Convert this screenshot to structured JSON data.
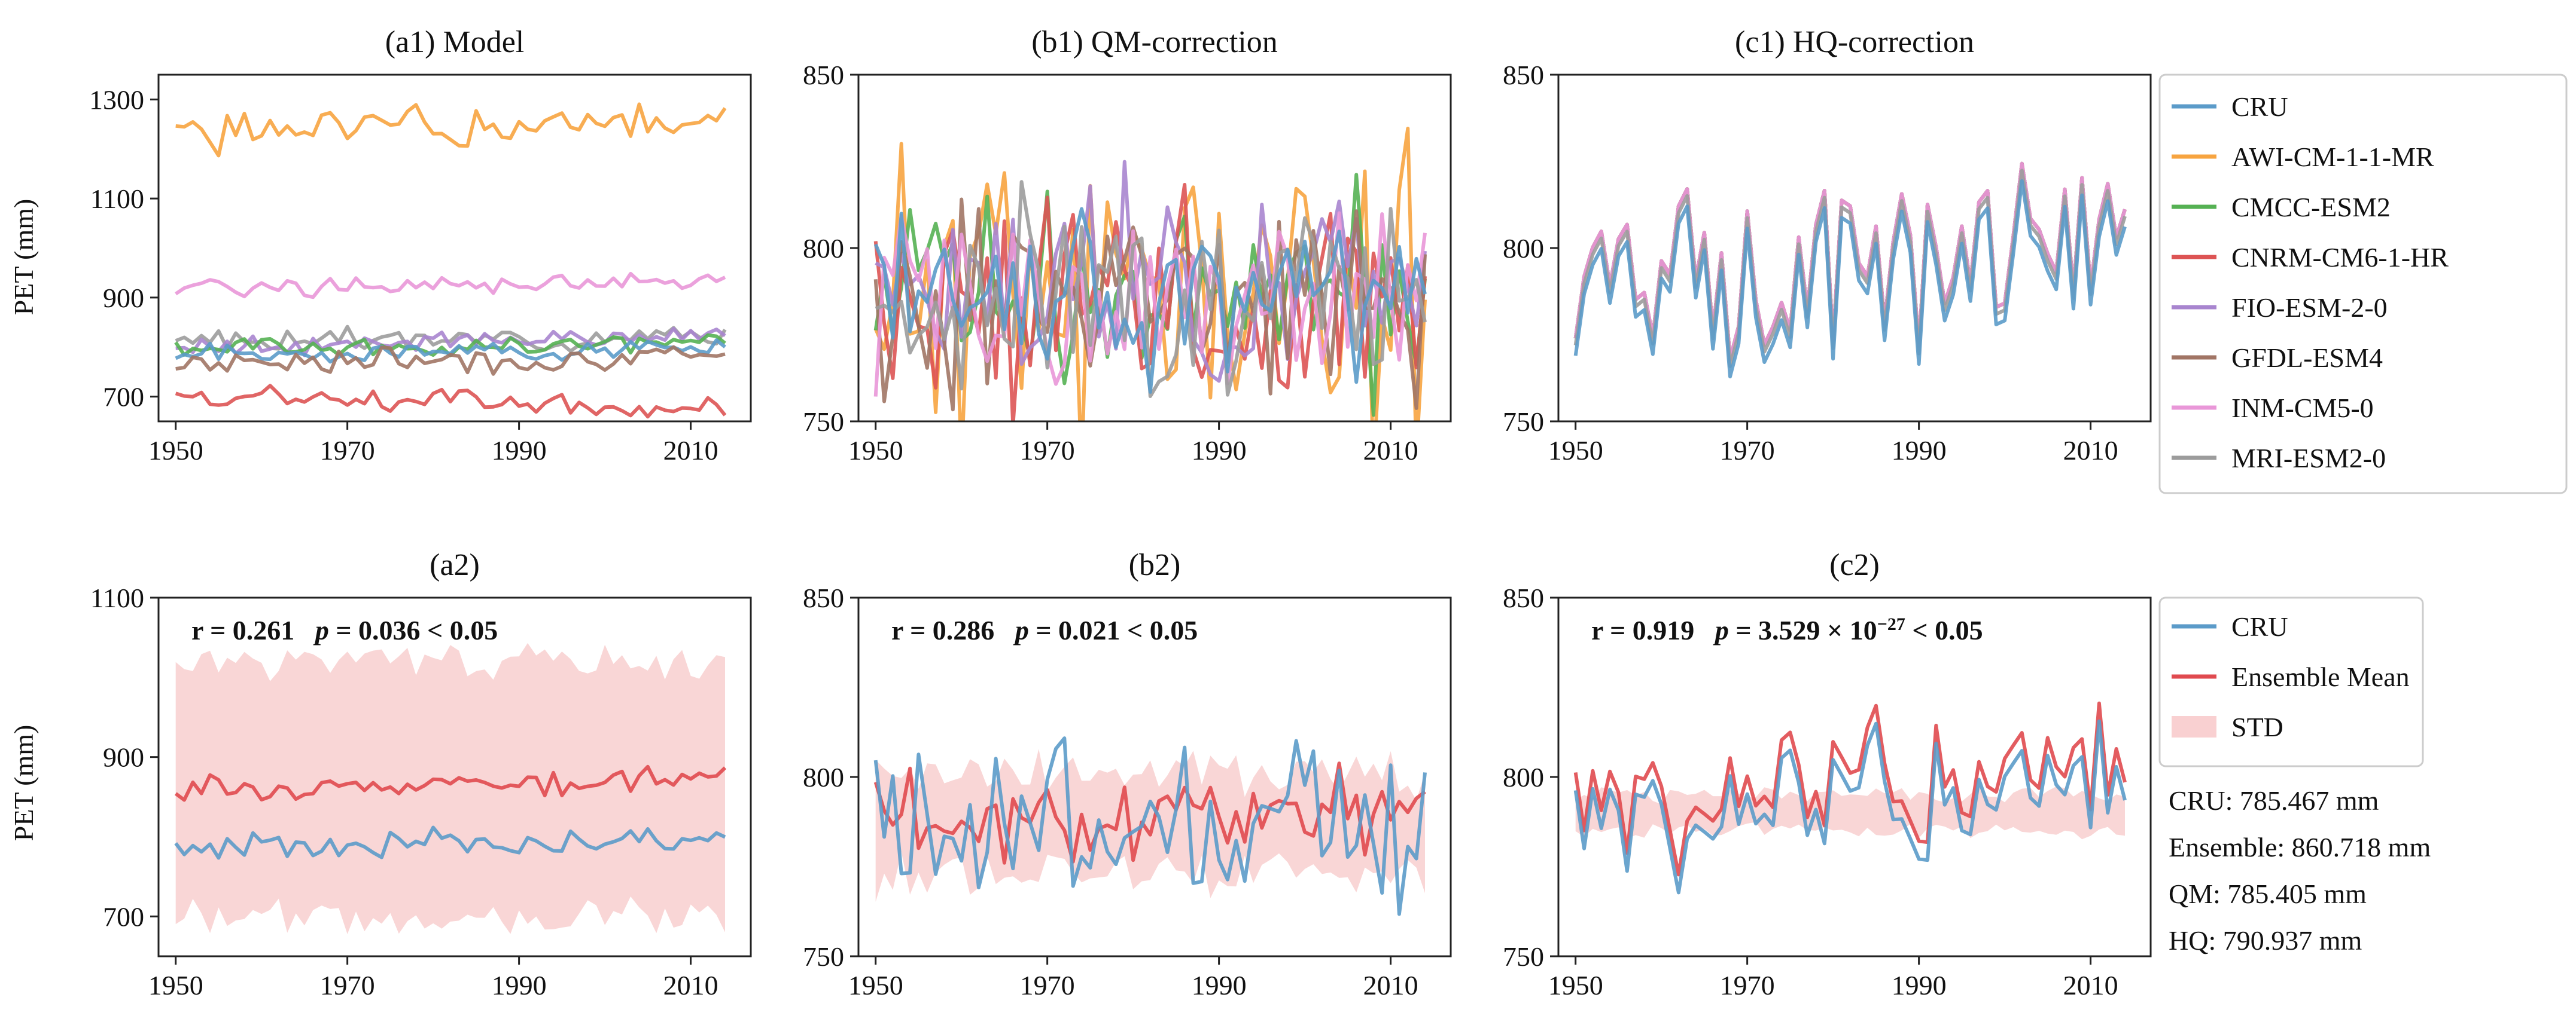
{
  "figure": {
    "ylabel": "PET (mm)",
    "xticks": [
      1950,
      1970,
      1990,
      2010
    ],
    "xlim": [
      1948,
      2017
    ]
  },
  "series_colors": {
    "CRU": "#5b9bc9",
    "AWI-CM-1-1-MR": "#f7a440",
    "CMCC-ESM2": "#55b153",
    "CNRM-CM6-1-HR": "#dd5454",
    "FIO-ESM-2-0": "#a885cf",
    "GFDL-ESM4": "#a17565",
    "INM-CM5-0": "#e997d8",
    "MRI-ESM2-0": "#9c9c9c",
    "Ensemble Mean": "#e04a4f",
    "STD": "#f7c4c5"
  },
  "legend_top": [
    "CRU",
    "AWI-CM-1-1-MR",
    "CMCC-ESM2",
    "CNRM-CM6-1-HR",
    "FIO-ESM-2-0",
    "GFDL-ESM4",
    "INM-CM5-0",
    "MRI-ESM2-0"
  ],
  "legend_bottom": [
    "CRU",
    "Ensemble Mean",
    "STD"
  ],
  "summary": [
    "CRU: 785.467 mm",
    "Ensemble: 860.718 mm",
    "QM: 785.405 mm",
    "HQ: 790.937 mm"
  ],
  "chart_data": [
    {
      "id": "a1",
      "type": "line",
      "title": "(a1) Model",
      "xlabel": "",
      "ylabel": "PET (mm)",
      "ylim": [
        650,
        1350
      ],
      "yticks": [
        700,
        900,
        1100,
        1300
      ],
      "series": [
        {
          "name": "AWI-CM-1-1-MR",
          "base": 1230,
          "amp": 24,
          "trend": 30,
          "seed": 1
        },
        {
          "name": "INM-CM5-0",
          "base": 922,
          "amp": 9,
          "trend": 8,
          "seed": 2
        },
        {
          "name": "MRI-ESM2-0",
          "base": 812,
          "amp": 10,
          "trend": 8,
          "seed": 3
        },
        {
          "name": "FIO-ESM-2-0",
          "base": 800,
          "amp": 10,
          "trend": 25,
          "seed": 4
        },
        {
          "name": "CMCC-ESM2",
          "base": 795,
          "amp": 10,
          "trend": 12,
          "seed": 5
        },
        {
          "name": "CRU",
          "base": 785,
          "amp": 9,
          "trend": 12,
          "seed": 6
        },
        {
          "name": "GFDL-ESM4",
          "base": 770,
          "amp": 12,
          "trend": 8,
          "seed": 7
        },
        {
          "name": "CNRM-CM6-1-HR",
          "base": 700,
          "amp": 12,
          "trend": -25,
          "seed": 8
        }
      ]
    },
    {
      "id": "b1",
      "type": "line",
      "title": "(b1) QM-correction",
      "xlabel": "",
      "ylabel": "",
      "ylim": [
        750,
        850
      ],
      "yticks": [
        750,
        800,
        850
      ],
      "series": [
        {
          "name": "AWI-CM-1-1-MR",
          "base": 786,
          "amp": 24,
          "trend": 4,
          "seed": 11
        },
        {
          "name": "CMCC-ESM2",
          "base": 786,
          "amp": 14,
          "trend": 4,
          "seed": 12
        },
        {
          "name": "CNRM-CM6-1-HR",
          "base": 786,
          "amp": 16,
          "trend": 0,
          "seed": 13
        },
        {
          "name": "FIO-ESM-2-0",
          "base": 786,
          "amp": 14,
          "trend": 4,
          "seed": 14
        },
        {
          "name": "GFDL-ESM4",
          "base": 786,
          "amp": 13,
          "trend": 0,
          "seed": 15
        },
        {
          "name": "INM-CM5-0",
          "base": 786,
          "amp": 15,
          "trend": 0,
          "seed": 16
        },
        {
          "name": "MRI-ESM2-0",
          "base": 786,
          "amp": 15,
          "trend": 0,
          "seed": 17
        },
        {
          "name": "CRU",
          "base": 785,
          "amp": 11,
          "trend": 4,
          "seed": 18
        }
      ]
    },
    {
      "id": "c1",
      "type": "line",
      "title": "(c1) HQ-correction",
      "xlabel": "",
      "ylabel": "",
      "ylim": [
        750,
        850
      ],
      "yticks": [
        750,
        800,
        850
      ],
      "series": [
        {
          "name": "AWI-CM-1-1-MR",
          "base": 790,
          "amp": 11,
          "trend": 14,
          "seed": 21
        },
        {
          "name": "CMCC-ESM2",
          "base": 790,
          "amp": 11,
          "trend": 14,
          "seed": 21
        },
        {
          "name": "CNRM-CM6-1-HR",
          "base": 790,
          "amp": 11,
          "trend": 14,
          "seed": 21
        },
        {
          "name": "FIO-ESM-2-0",
          "base": 790,
          "amp": 11,
          "trend": 14,
          "seed": 21
        },
        {
          "name": "GFDL-ESM4",
          "base": 790,
          "amp": 11,
          "trend": 14,
          "seed": 21
        },
        {
          "name": "INM-CM5-0",
          "base": 790,
          "amp": 11,
          "trend": 14,
          "seed": 21
        },
        {
          "name": "MRI-ESM2-0",
          "base": 788,
          "amp": 11,
          "trend": 14,
          "seed": 21
        },
        {
          "name": "CRU",
          "base": 785,
          "amp": 11,
          "trend": 14,
          "seed": 21
        }
      ]
    },
    {
      "id": "a2",
      "type": "line",
      "title": "(a2)",
      "xlabel": "",
      "ylabel": "PET (mm)",
      "ylim": [
        650,
        1100
      ],
      "yticks": [
        700,
        900,
        1100
      ],
      "annotation": {
        "r": "r = 0.261",
        "p": "p",
        "p_rest": " = 0.036 < 0.05"
      },
      "band": {
        "name": "STD",
        "center": 860,
        "half_width": 160,
        "amp": 18,
        "seed": 31
      },
      "series": [
        {
          "name": "Ensemble Mean",
          "base": 860,
          "amp": 7,
          "trend": 14,
          "seed": 32
        },
        {
          "name": "CRU",
          "base": 785,
          "amp": 8,
          "trend": 14,
          "seed": 33
        }
      ]
    },
    {
      "id": "b2",
      "type": "line",
      "title": "(b2)",
      "xlabel": "",
      "ylabel": "",
      "ylim": [
        750,
        850
      ],
      "yticks": [
        750,
        800,
        850
      ],
      "annotation": {
        "r": "r = 0.286",
        "p": "p",
        "p_rest": " = 0.021 < 0.05"
      },
      "band": {
        "name": "STD",
        "center": 787,
        "half_width": 14,
        "amp": 6,
        "seed": 41
      },
      "series": [
        {
          "name": "Ensemble Mean",
          "base": 786,
          "amp": 6,
          "trend": 6,
          "seed": 42
        },
        {
          "name": "CRU",
          "base": 785,
          "amp": 11,
          "trend": 6,
          "seed": 43
        }
      ]
    },
    {
      "id": "c2",
      "type": "line",
      "title": "(c2)",
      "xlabel": "",
      "ylabel": "",
      "ylim": [
        750,
        850
      ],
      "yticks": [
        750,
        800,
        850
      ],
      "annotation": {
        "r": "r = 0.919",
        "p": "p",
        "p_rest": " = 3.529 × 10",
        "p_exp": "−27",
        "p_tail": " < 0.05"
      },
      "band": {
        "name": "STD",
        "center": 790,
        "half_width": 5,
        "amp": 2,
        "seed": 51
      },
      "series": [
        {
          "name": "Ensemble Mean",
          "base": 790,
          "amp": 11,
          "trend": 14,
          "seed": 52
        },
        {
          "name": "CRU",
          "base": 785,
          "amp": 11,
          "trend": 14,
          "seed": 52
        }
      ]
    }
  ]
}
